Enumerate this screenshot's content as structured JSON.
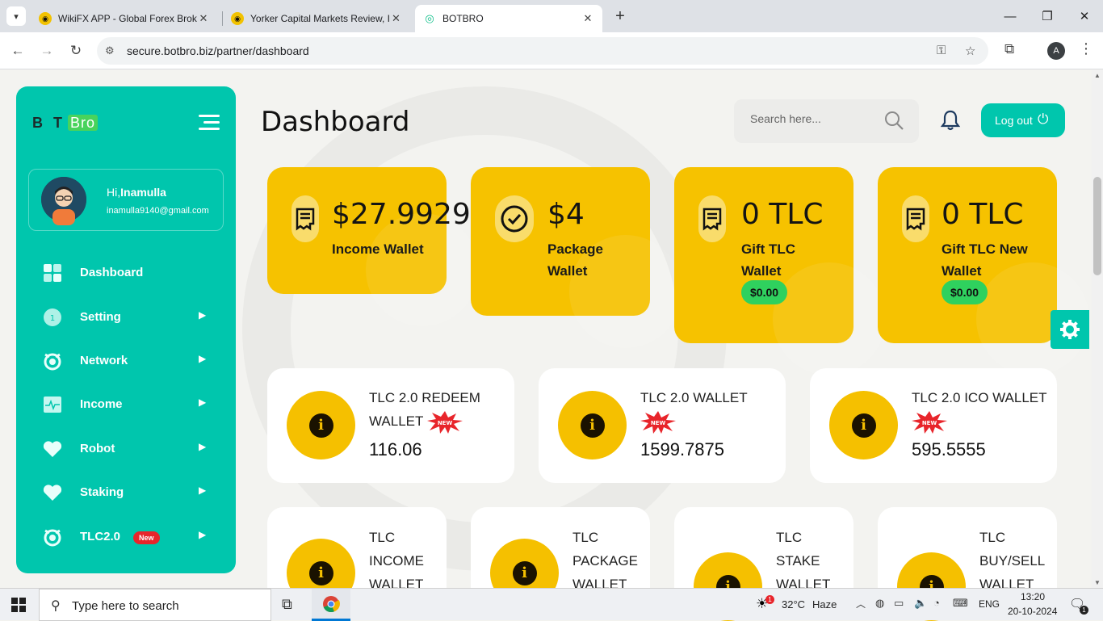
{
  "browser": {
    "tabs": [
      {
        "title": "WikiFX APP - Global Forex Brok",
        "close": "✕"
      },
      {
        "title": "Yorker Capital Markets Review, I",
        "close": "✕"
      },
      {
        "title": "BOTBRO",
        "close": "✕"
      }
    ],
    "new_tab": "+",
    "url": "secure.botbro.biz/partner/dashboard",
    "profile_initial": "A"
  },
  "sidebar": {
    "logo_main": "B  T",
    "logo_bro": "Bro",
    "user": {
      "greeting": "Hi,",
      "name": "Inamulla",
      "email": "inamulla9140@gmail.com"
    },
    "items": [
      {
        "label": "Dashboard",
        "icon": "dashboard-icon"
      },
      {
        "label": "Setting",
        "icon": "setting-icon",
        "arrow": "▶"
      },
      {
        "label": "Network",
        "icon": "network-icon",
        "arrow": "▶"
      },
      {
        "label": "Income",
        "icon": "income-icon",
        "arrow": "▶"
      },
      {
        "label": "Robot",
        "icon": "heart-icon",
        "arrow": "▶"
      },
      {
        "label": "Staking",
        "icon": "heart-icon",
        "arrow": "▶"
      },
      {
        "label": "TLC2.0",
        "icon": "tlc-icon",
        "arrow": "▶",
        "badge": "New"
      }
    ]
  },
  "header": {
    "title": "Dashboard",
    "search_placeholder": "Search here...",
    "logout": "Log out"
  },
  "wallet_cards": [
    {
      "amount": "$27.9929",
      "label": "Income Wallet"
    },
    {
      "amount": "$4",
      "label": "Package Wallet"
    },
    {
      "amount": "0 TLC",
      "label": "Gift TLC Wallet",
      "pill": "$0.00"
    },
    {
      "amount": "0 TLC",
      "label": "Gift TLC New Wallet",
      "pill": "$0.00"
    }
  ],
  "tlc_cards": [
    {
      "title": "TLC 2.0 REDEEM WALLET",
      "badge": "NEW",
      "value": "116.06"
    },
    {
      "title": "TLC 2.0 WALLET",
      "badge": "NEW",
      "value": "1599.7875"
    },
    {
      "title": "TLC 2.0 ICO WALLET",
      "badge": "NEW",
      "value": "595.5555"
    }
  ],
  "bottom_cards": [
    {
      "line1": "TLC",
      "line2": "INCOME",
      "line3": "WALLET"
    },
    {
      "line1": "TLC",
      "line2": "PACKAGE",
      "line3": "WALLET"
    },
    {
      "line1": "TLC",
      "line2": "STAKE",
      "line3": "WALLET"
    },
    {
      "line1": "TLC",
      "line2": "BUY/SELL",
      "line3": "WALLET"
    }
  ],
  "coin_glyph": "i",
  "taskbar": {
    "search_placeholder": "Type here to search",
    "temp": "32°C",
    "weather": "Haze",
    "lang": "ENG",
    "time": "13:20",
    "date": "20-10-2024",
    "weather_badge": "1",
    "notif_count": "1"
  },
  "colors": {
    "teal": "#00c6ad",
    "yellow": "#f6c200",
    "green": "#2fd15e",
    "red": "#e8252b"
  }
}
